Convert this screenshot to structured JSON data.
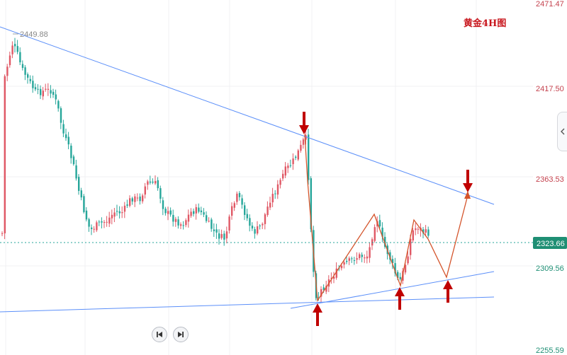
{
  "chart_data": {
    "type": "candlestick",
    "title": "黄金4H图",
    "y_axis": {
      "position": "right",
      "ylim": [
        2255.59,
        2471.47
      ],
      "ticks": [
        "2471.47",
        "2417.50",
        "2363.53",
        "2309.56",
        "2255.59"
      ]
    },
    "current_price": {
      "label": "2323.66",
      "value": 2323.66
    },
    "high_annotation": {
      "label": "2449.88",
      "value": 2449.88
    },
    "colors": {
      "up": "#e05865",
      "down": "#26a69a",
      "trendline": "#5b8ff9",
      "projection": "#d4542b",
      "arrow": "#c00000"
    }
  },
  "nav": {
    "prev_icon": "skip-back-icon",
    "next_icon": "skip-forward-icon"
  },
  "side_handle_icon": "chevron-left-icon"
}
